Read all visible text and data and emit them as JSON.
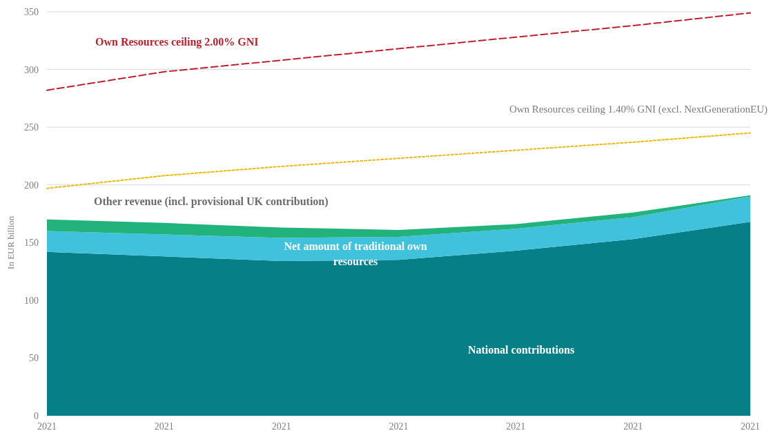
{
  "chart_data": {
    "type": "area",
    "stacked": true,
    "ylabel": "In EUR billion",
    "categories": [
      "2021",
      "2021",
      "2021",
      "2021",
      "2021",
      "2021",
      "2021"
    ],
    "ylim": [
      0,
      350
    ],
    "yticks": [
      0,
      50,
      100,
      150,
      200,
      250,
      300,
      350
    ],
    "grid": "y",
    "series": [
      {
        "name": "National contributions",
        "color": "#067f86",
        "values": [
          142,
          138,
          134,
          135,
          143,
          153,
          168
        ]
      },
      {
        "name": "Net amount of traditional own resources",
        "color": "#40c1dc",
        "values": [
          18,
          19,
          20,
          20,
          19,
          19,
          22
        ]
      },
      {
        "name": "Other revenue (incl. provisional UK contribution)",
        "color": "#22b27c",
        "values": [
          10,
          10,
          9,
          6,
          4,
          4,
          1
        ]
      },
      {
        "name": "Own Resources ceiling 2.00% GNI",
        "type": "line",
        "line_style": "dashed",
        "color": "#c0202e",
        "values": [
          282,
          298,
          308,
          318,
          328,
          338,
          349
        ]
      },
      {
        "name": "Own Resources ceiling 1.40% GNI (excl. NextGenerationEU)",
        "type": "line",
        "line_style": "dotted",
        "color": "#f2b705",
        "values": [
          197,
          208,
          216,
          223,
          230,
          237,
          245
        ]
      }
    ]
  }
}
